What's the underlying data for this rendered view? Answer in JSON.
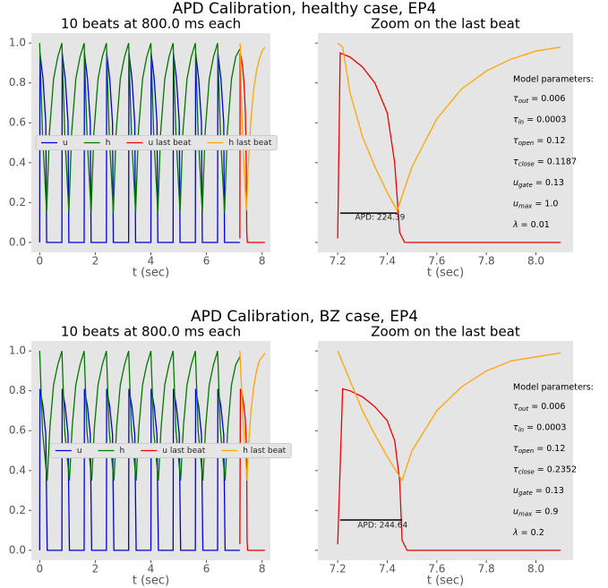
{
  "figures": [
    {
      "title": "APD Calibration, healthy case, EP4"
    },
    {
      "title": "APD Calibration, BZ case, EP4"
    }
  ],
  "chart_data": [
    {
      "type": "line",
      "title": "10 beats at 800.0 ms each",
      "xlabel": "t (sec)",
      "xlim": [
        -0.3,
        8.3
      ],
      "ylim": [
        -0.05,
        1.05
      ],
      "xticks": [
        0,
        2,
        4,
        6,
        8
      ],
      "yticks": [
        {
          "value": 0,
          "label": "0.0"
        },
        0.2,
        0.4,
        0.6,
        0.8,
        {
          "value": 1,
          "label": "1.0"
        }
      ],
      "show_ytick_labels": true,
      "legend": "center left",
      "series": [
        {
          "name": "u",
          "color": "#0000dd",
          "x": [
            0,
            0.01,
            0.12,
            0.22,
            0.25,
            0.8,
            0.81,
            0.92,
            1.02,
            1.05,
            1.6,
            1.61,
            1.72,
            1.82,
            1.85,
            2.4,
            2.41,
            2.52,
            2.62,
            2.65,
            3.2,
            3.21,
            3.32,
            3.42,
            3.45,
            4,
            4.01,
            4.12,
            4.22,
            4.25,
            4.8,
            4.81,
            4.92,
            5.02,
            5.05,
            5.6,
            5.61,
            5.72,
            5.82,
            5.85,
            6.4,
            6.41,
            6.52,
            6.62,
            6.65,
            7.2
          ],
          "values": [
            0,
            0.95,
            0.82,
            0.6,
            0,
            0,
            0.95,
            0.82,
            0.6,
            0,
            0,
            0.95,
            0.82,
            0.6,
            0,
            0,
            0.95,
            0.82,
            0.6,
            0,
            0,
            0.95,
            0.82,
            0.6,
            0,
            0,
            0.95,
            0.82,
            0.6,
            0,
            0,
            0.95,
            0.82,
            0.6,
            0,
            0,
            0.95,
            0.82,
            0.6,
            0,
            0,
            0.95,
            0.82,
            0.6,
            0,
            0
          ]
        },
        {
          "name": "h",
          "color": "#007700",
          "x": [
            0,
            0.1,
            0.25,
            0.35,
            0.5,
            0.65,
            0.8,
            0.9,
            1.05,
            1.15,
            1.3,
            1.45,
            1.6,
            1.7,
            1.85,
            1.95,
            2.1,
            2.25,
            2.4,
            2.5,
            2.65,
            2.75,
            2.9,
            3.05,
            3.2,
            3.3,
            3.45,
            3.55,
            3.7,
            3.85,
            4,
            4.1,
            4.25,
            4.35,
            4.5,
            4.65,
            4.8,
            4.9,
            5.05,
            5.15,
            5.3,
            5.45,
            5.6,
            5.7,
            5.85,
            5.95,
            6.1,
            6.25,
            6.4,
            6.5,
            6.65,
            6.75,
            6.9,
            7.05,
            7.2
          ],
          "values": [
            1,
            0.55,
            0.15,
            0.55,
            0.82,
            0.93,
            1,
            0.55,
            0.15,
            0.55,
            0.82,
            0.93,
            1,
            0.55,
            0.15,
            0.55,
            0.82,
            0.93,
            1,
            0.55,
            0.15,
            0.55,
            0.82,
            0.93,
            1,
            0.55,
            0.15,
            0.55,
            0.82,
            0.93,
            1,
            0.55,
            0.15,
            0.55,
            0.82,
            0.93,
            1,
            0.55,
            0.15,
            0.55,
            0.82,
            0.93,
            1,
            0.55,
            0.15,
            0.55,
            0.82,
            0.93,
            1,
            0.55,
            0.15,
            0.55,
            0.82,
            0.93,
            0.97
          ]
        },
        {
          "name": "u last beat",
          "color": "#ee0000",
          "x": [
            7.2,
            7.21,
            7.25,
            7.3,
            7.35,
            7.4,
            7.43,
            7.45,
            7.47,
            8.1
          ],
          "values": [
            0.02,
            0.95,
            0.93,
            0.88,
            0.8,
            0.65,
            0.4,
            0.05,
            0,
            0
          ]
        },
        {
          "name": "h last beat",
          "color": "#ffa500",
          "x": [
            7.2,
            7.22,
            7.25,
            7.3,
            7.35,
            7.4,
            7.44,
            7.5,
            7.6,
            7.7,
            7.8,
            7.9,
            8,
            8.1
          ],
          "values": [
            1,
            0.98,
            0.75,
            0.53,
            0.38,
            0.25,
            0.16,
            0.38,
            0.62,
            0.77,
            0.86,
            0.92,
            0.96,
            0.98
          ]
        }
      ]
    },
    {
      "type": "line",
      "title": "Zoom on the last beat",
      "xlabel": "t (sec)",
      "xlim": [
        7.12,
        8.15
      ],
      "ylim": [
        -0.05,
        1.05
      ],
      "xticks": [
        7.2,
        7.4,
        7.6,
        7.8,
        {
          "value": 8,
          "label": "8.0"
        }
      ],
      "yticks": [
        0,
        0.2,
        0.4,
        0.6,
        0.8,
        1
      ],
      "show_ytick_labels": false,
      "series": [
        {
          "color": "#ee0000",
          "x": [
            7.2,
            7.21,
            7.25,
            7.3,
            7.35,
            7.4,
            7.43,
            7.45,
            7.47,
            8.1
          ],
          "values": [
            0.02,
            0.95,
            0.93,
            0.88,
            0.8,
            0.65,
            0.4,
            0.05,
            0,
            0
          ]
        },
        {
          "color": "#ffa500",
          "x": [
            7.2,
            7.22,
            7.25,
            7.3,
            7.35,
            7.4,
            7.44,
            7.5,
            7.6,
            7.7,
            7.8,
            7.9,
            8,
            8.1
          ],
          "values": [
            1,
            0.98,
            0.75,
            0.53,
            0.38,
            0.25,
            0.16,
            0.38,
            0.62,
            0.77,
            0.86,
            0.92,
            0.96,
            0.98
          ]
        }
      ],
      "apd_line": {
        "x": [
          7.21,
          7.44
        ],
        "y": 0.147,
        "color": "#000000"
      },
      "annotation": {
        "text": "APD: 224.39",
        "x": 7.27,
        "y": 0.125
      },
      "params_title": "Model parameters:",
      "params": [
        [
          "τ",
          "out",
          " = 0.006"
        ],
        [
          "τ",
          "in",
          " = 0.0003"
        ],
        [
          "τ",
          "open",
          " = 0.12"
        ],
        [
          "τ",
          "close",
          " = 0.1187"
        ],
        [
          "u",
          "gate",
          " = 0.13"
        ],
        [
          "u",
          "max",
          " = 1.0"
        ],
        [
          "λ",
          "",
          " = 0.01"
        ]
      ]
    },
    {
      "type": "line",
      "title": "10 beats at 800.0 ms each",
      "xlabel": "t (sec)",
      "xlim": [
        -0.3,
        8.3
      ],
      "ylim": [
        -0.05,
        1.05
      ],
      "xticks": [
        0,
        2,
        4,
        6,
        8
      ],
      "yticks": [
        {
          "value": 0,
          "label": "0.0"
        },
        0.2,
        0.4,
        0.6,
        0.8,
        {
          "value": 1,
          "label": "1.0"
        }
      ],
      "show_ytick_labels": true,
      "legend": "center",
      "series": [
        {
          "name": "u",
          "color": "#0000dd",
          "x": [
            0,
            0.01,
            0.12,
            0.22,
            0.27,
            0.8,
            0.81,
            0.92,
            1.02,
            1.07,
            1.6,
            1.61,
            1.72,
            1.82,
            1.87,
            2.4,
            2.41,
            2.52,
            2.62,
            2.67,
            3.2,
            3.21,
            3.32,
            3.42,
            3.47,
            4,
            4.01,
            4.12,
            4.22,
            4.27,
            4.8,
            4.81,
            4.92,
            5.02,
            5.07,
            5.6,
            5.61,
            5.72,
            5.82,
            5.87,
            6.4,
            6.41,
            6.52,
            6.62,
            6.67,
            7.2
          ],
          "values": [
            0,
            0.81,
            0.72,
            0.58,
            0,
            0,
            0.81,
            0.72,
            0.58,
            0,
            0,
            0.81,
            0.72,
            0.58,
            0,
            0,
            0.81,
            0.72,
            0.58,
            0,
            0,
            0.81,
            0.72,
            0.58,
            0,
            0,
            0.81,
            0.72,
            0.58,
            0,
            0,
            0.81,
            0.72,
            0.58,
            0,
            0,
            0.81,
            0.72,
            0.58,
            0,
            0,
            0.81,
            0.72,
            0.58,
            0,
            0
          ]
        },
        {
          "name": "h",
          "color": "#007700",
          "x": [
            0,
            0.1,
            0.27,
            0.37,
            0.5,
            0.65,
            0.8,
            0.9,
            1.07,
            1.17,
            1.3,
            1.45,
            1.6,
            1.7,
            1.87,
            1.97,
            2.1,
            2.25,
            2.4,
            2.5,
            2.67,
            2.77,
            2.9,
            3.05,
            3.2,
            3.3,
            3.47,
            3.57,
            3.7,
            3.85,
            4,
            4.1,
            4.27,
            4.37,
            4.5,
            4.65,
            4.8,
            4.9,
            5.07,
            5.17,
            5.3,
            5.45,
            5.6,
            5.7,
            5.87,
            5.97,
            6.1,
            6.25,
            6.4,
            6.5,
            6.67,
            6.77,
            6.9,
            7.05,
            7.2
          ],
          "values": [
            1,
            0.6,
            0.35,
            0.62,
            0.83,
            0.93,
            1,
            0.6,
            0.35,
            0.62,
            0.83,
            0.93,
            1,
            0.6,
            0.35,
            0.62,
            0.83,
            0.93,
            1,
            0.6,
            0.35,
            0.62,
            0.83,
            0.93,
            1,
            0.6,
            0.35,
            0.62,
            0.83,
            0.93,
            1,
            0.6,
            0.35,
            0.62,
            0.83,
            0.93,
            1,
            0.6,
            0.35,
            0.62,
            0.83,
            0.93,
            1,
            0.6,
            0.35,
            0.62,
            0.83,
            0.93,
            1,
            0.6,
            0.35,
            0.62,
            0.83,
            0.93,
            0.97
          ]
        },
        {
          "name": "u last beat",
          "color": "#ee0000",
          "x": [
            7.2,
            7.22,
            7.25,
            7.3,
            7.35,
            7.4,
            7.43,
            7.45,
            7.46,
            7.48,
            8.1
          ],
          "values": [
            0.03,
            0.81,
            0.8,
            0.77,
            0.72,
            0.65,
            0.55,
            0.35,
            0.05,
            0,
            0
          ]
        },
        {
          "name": "h last beat",
          "color": "#ffa500",
          "x": [
            7.2,
            7.25,
            7.3,
            7.35,
            7.4,
            7.46,
            7.5,
            7.6,
            7.7,
            7.8,
            7.9,
            8,
            8.1
          ],
          "values": [
            1,
            0.85,
            0.7,
            0.58,
            0.47,
            0.35,
            0.5,
            0.7,
            0.82,
            0.9,
            0.95,
            0.97,
            0.99
          ]
        }
      ]
    },
    {
      "type": "line",
      "title": "Zoom on the last beat",
      "xlabel": "t (sec)",
      "xlim": [
        7.12,
        8.15
      ],
      "ylim": [
        -0.05,
        1.05
      ],
      "xticks": [
        7.2,
        7.4,
        7.6,
        7.8,
        {
          "value": 8,
          "label": "8.0"
        }
      ],
      "yticks": [
        0,
        0.2,
        0.4,
        0.6,
        0.8,
        1
      ],
      "show_ytick_labels": false,
      "series": [
        {
          "color": "#ee0000",
          "x": [
            7.2,
            7.22,
            7.25,
            7.3,
            7.35,
            7.4,
            7.43,
            7.45,
            7.46,
            7.48,
            8.1
          ],
          "values": [
            0.03,
            0.81,
            0.8,
            0.77,
            0.72,
            0.65,
            0.55,
            0.35,
            0.05,
            0,
            0
          ]
        },
        {
          "color": "#ffa500",
          "x": [
            7.2,
            7.25,
            7.3,
            7.35,
            7.4,
            7.46,
            7.5,
            7.6,
            7.7,
            7.8,
            7.9,
            8,
            8.1
          ],
          "values": [
            1,
            0.85,
            0.7,
            0.58,
            0.47,
            0.35,
            0.5,
            0.7,
            0.82,
            0.9,
            0.95,
            0.97,
            0.99
          ]
        }
      ],
      "apd_line": {
        "x": [
          7.21,
          7.46
        ],
        "y": 0.152,
        "color": "#000000"
      },
      "annotation": {
        "text": "APD: 244.64",
        "x": 7.28,
        "y": 0.125
      },
      "params_title": "Model parameters:",
      "params": [
        [
          "τ",
          "out",
          " = 0.006"
        ],
        [
          "τ",
          "in",
          " = 0.0003"
        ],
        [
          "τ",
          "open",
          " = 0.12"
        ],
        [
          "τ",
          "close",
          " = 0.2352"
        ],
        [
          "u",
          "gate",
          " = 0.13"
        ],
        [
          "u",
          "max",
          " = 0.9"
        ],
        [
          "λ",
          "",
          " = 0.2"
        ]
      ]
    }
  ]
}
